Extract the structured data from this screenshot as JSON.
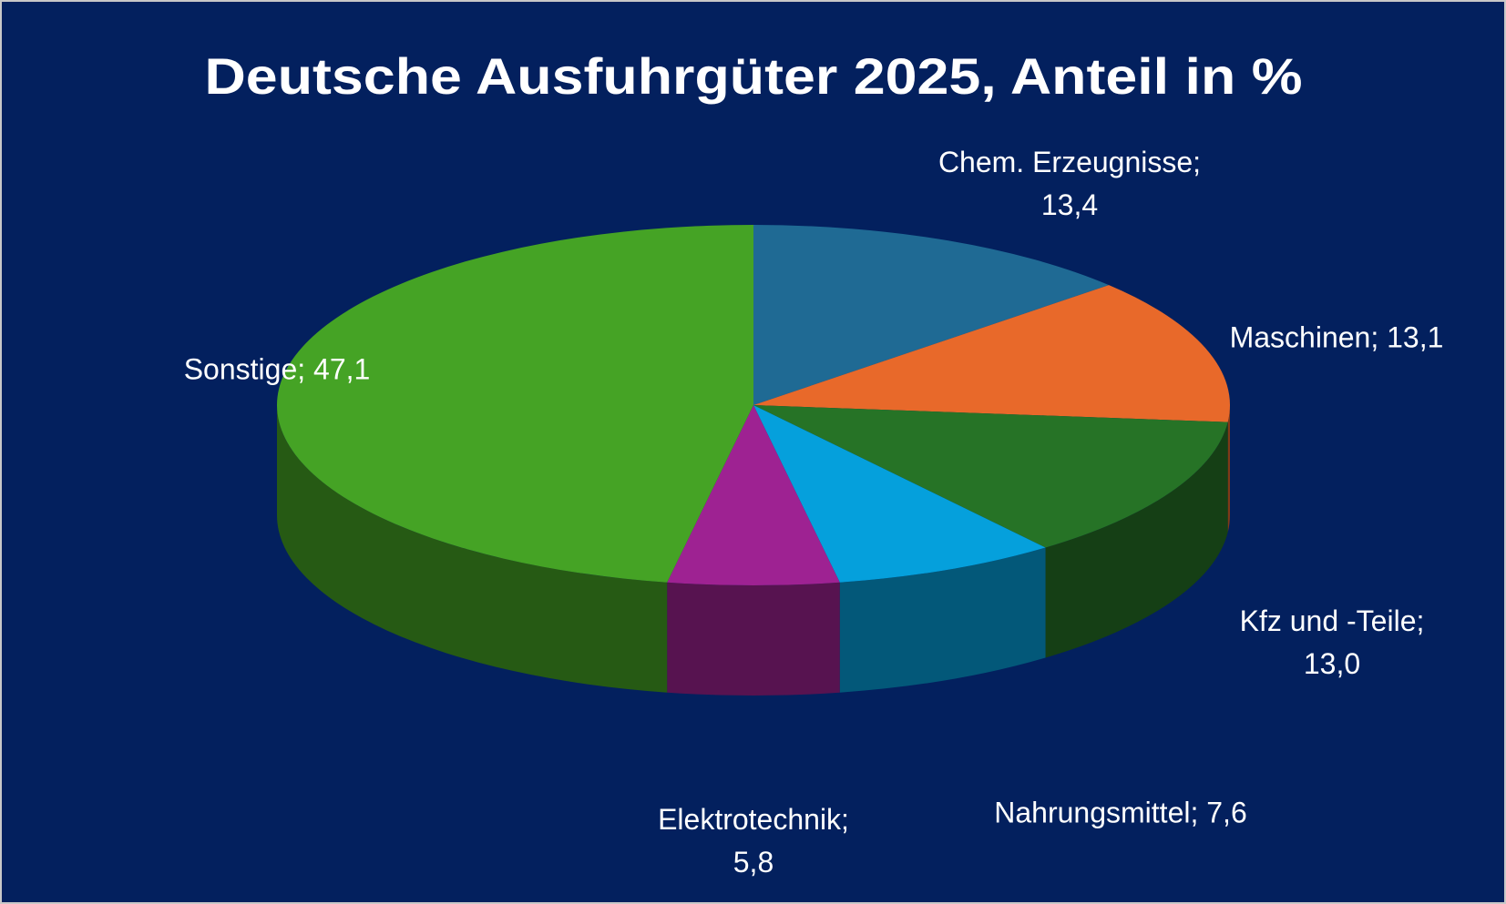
{
  "chart_data": {
    "type": "pie3d",
    "title": "Deutsche Ausfuhrgüter 2025, Anteil in %",
    "categories": [
      "Chem. Erzeugnisse",
      "Maschinen",
      "Kfz und -Teile",
      "Nahrungsmittel",
      "Elektrotechnik",
      "Sonstige"
    ],
    "values": [
      13.4,
      13.1,
      13.0,
      7.6,
      5.8,
      47.1
    ],
    "value_labels": [
      "13,4",
      "13,1",
      "13,0",
      "7,6",
      "5,8",
      "47,1"
    ],
    "label_separator": ";",
    "colors": [
      "#1f6a94",
      "#e8692a",
      "#267326",
      "#05a0dc",
      "#9e2292",
      "#45a325"
    ]
  }
}
